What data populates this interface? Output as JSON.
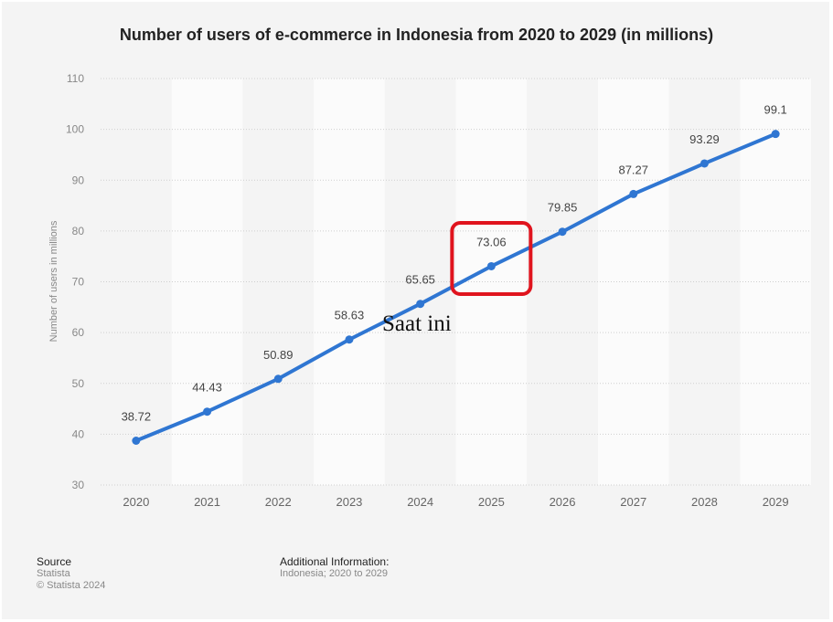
{
  "chart_data": {
    "type": "line",
    "title": "Number of users of e-commerce in Indonesia from 2020 to 2029 (in millions)",
    "xlabel": "",
    "ylabel": "Number of users in millions",
    "categories": [
      "2020",
      "2021",
      "2022",
      "2023",
      "2024",
      "2025",
      "2026",
      "2027",
      "2028",
      "2029"
    ],
    "series": [
      {
        "values": [
          38.72,
          44.43,
          50.89,
          58.63,
          65.65,
          73.06,
          79.85,
          87.27,
          93.29,
          99.1
        ]
      }
    ],
    "data_labels": [
      "38.72",
      "44.43",
      "50.89",
      "58.63",
      "65.65",
      "73.06",
      "79.85",
      "87.27",
      "93.29",
      "99.1"
    ],
    "ylim": [
      30,
      110
    ],
    "yticks": [
      "30",
      "40",
      "50",
      "60",
      "70",
      "80",
      "90",
      "100",
      "110"
    ],
    "grid": true,
    "line_color": "#2f76d2",
    "highlight": {
      "category": "2025",
      "color": "#e0141e"
    },
    "annotation": "Saat ini"
  },
  "footer": {
    "source_heading": "Source",
    "source_name": "Statista",
    "copyright": "© Statista 2024",
    "info_heading": "Additional Information:",
    "info_text": "Indonesia; 2020 to 2029"
  }
}
